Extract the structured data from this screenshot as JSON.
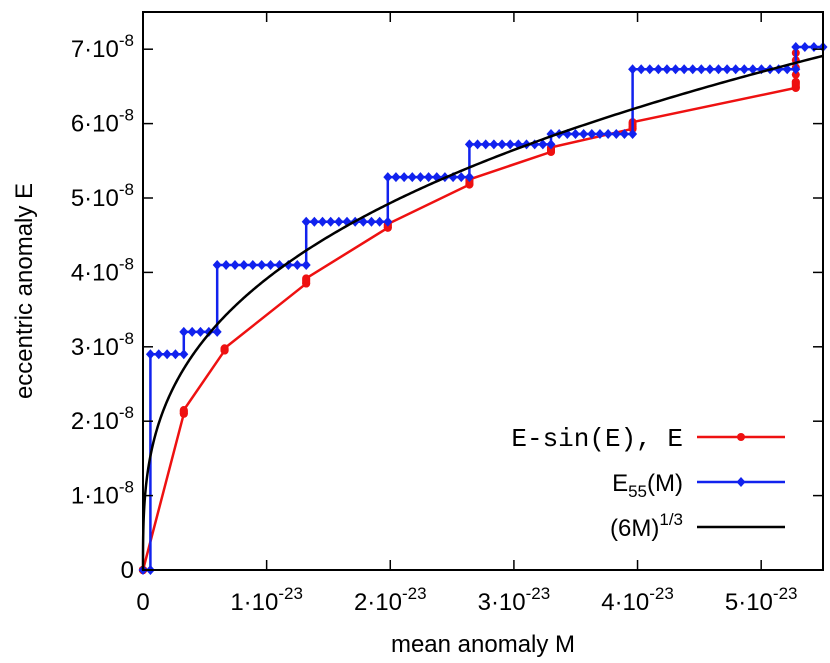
{
  "chart_data": {
    "type": "line",
    "xlabel": "mean anomaly M",
    "ylabel": "eccentric anomaly E",
    "xlim": [
      0,
      5.5e-23
    ],
    "ylim": [
      0,
      7.5e-08
    ],
    "x_ticks": [
      {
        "value": 0,
        "mant": "0",
        "exp": ""
      },
      {
        "value": 1e-23,
        "mant": "1·10",
        "exp": "-23"
      },
      {
        "value": 2e-23,
        "mant": "2·10",
        "exp": "-23"
      },
      {
        "value": 3e-23,
        "mant": "3·10",
        "exp": "-23"
      },
      {
        "value": 4e-23,
        "mant": "4·10",
        "exp": "-23"
      },
      {
        "value": 5e-23,
        "mant": "5·10",
        "exp": "-23"
      }
    ],
    "y_ticks": [
      {
        "value": 0,
        "mant": "0",
        "exp": ""
      },
      {
        "value": 1e-08,
        "mant": "1·10",
        "exp": "-8"
      },
      {
        "value": 2e-08,
        "mant": "2·10",
        "exp": "-8"
      },
      {
        "value": 3e-08,
        "mant": "3·10",
        "exp": "-8"
      },
      {
        "value": 4e-08,
        "mant": "4·10",
        "exp": "-8"
      },
      {
        "value": 5e-08,
        "mant": "5·10",
        "exp": "-8"
      },
      {
        "value": 6e-08,
        "mant": "6·10",
        "exp": "-8"
      },
      {
        "value": 7e-08,
        "mant": "7·10",
        "exp": "-8"
      }
    ],
    "legend_placement": "bottom-right",
    "grid": false,
    "series": [
      {
        "name": "E-sin(E), E",
        "color": "#ee1111",
        "marker": "circle",
        "steps": [
          {
            "x0": 0.0,
            "x1": 3.3e-24,
            "y_start": 0.0,
            "y_end": 2.1e-08
          },
          {
            "x0": 3.3e-24,
            "x1": 6.6e-24,
            "y_start": 2.15e-08,
            "y_end": 2.95e-08
          },
          {
            "x0": 6.6e-24,
            "x1": 1.32e-23,
            "y_start": 2.98e-08,
            "y_end": 3.85e-08
          },
          {
            "x0": 1.32e-23,
            "x1": 1.98e-23,
            "y_start": 3.92e-08,
            "y_end": 4.6e-08
          },
          {
            "x0": 1.98e-23,
            "x1": 2.64e-23,
            "y_start": 4.65e-08,
            "y_end": 5.18e-08
          },
          {
            "x0": 2.64e-23,
            "x1": 3.3e-23,
            "y_start": 5.25e-08,
            "y_end": 5.62e-08
          },
          {
            "x0": 3.3e-23,
            "x1": 3.96e-23,
            "y_start": 5.68e-08,
            "y_end": 5.93e-08
          },
          {
            "x0": 3.96e-23,
            "x1": 5.28e-23,
            "y_start": 6.02e-08,
            "y_end": 6.48e-08
          },
          {
            "x0": 5.28e-23,
            "x1": 5.28e-23,
            "y_start": 6.56e-08,
            "y_end": 6.95e-08
          }
        ]
      },
      {
        "name_base": "E",
        "name_sub": "55",
        "name_rest": "(M)",
        "color": "#1122ee",
        "marker": "diamond",
        "steps": [
          {
            "x0": 0.0,
            "x1": 6e-25,
            "y": 0.0
          },
          {
            "x0": 6e-25,
            "x1": 3.3e-24,
            "y": 2.9e-08
          },
          {
            "x0": 3.3e-24,
            "x1": 6e-24,
            "y": 3.2e-08
          },
          {
            "x0": 6e-24,
            "x1": 1.32e-23,
            "y": 4.1e-08
          },
          {
            "x0": 1.32e-23,
            "x1": 1.98e-23,
            "y": 4.68e-08
          },
          {
            "x0": 1.98e-23,
            "x1": 2.64e-23,
            "y": 5.28e-08
          },
          {
            "x0": 2.64e-23,
            "x1": 3.3e-23,
            "y": 5.72e-08
          },
          {
            "x0": 3.3e-23,
            "x1": 3.96e-23,
            "y": 5.86e-08
          },
          {
            "x0": 3.96e-23,
            "x1": 5.28e-23,
            "y": 6.73e-08
          },
          {
            "x0": 5.28e-23,
            "x1": 5.5e-23,
            "y": 7.03e-08
          }
        ]
      },
      {
        "name_base": "(6M)",
        "name_sup": "1/3",
        "color": "#000000",
        "marker": "none",
        "function": "(6M)^(1/3)"
      }
    ]
  }
}
